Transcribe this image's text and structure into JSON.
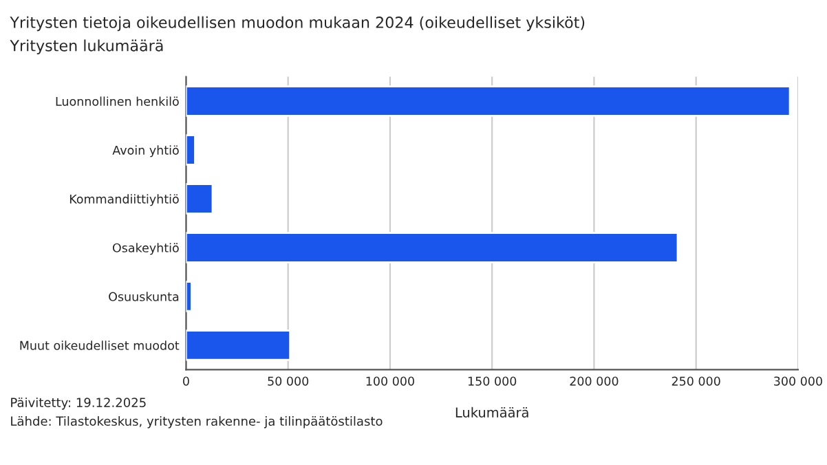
{
  "chart_data": {
    "type": "bar",
    "orientation": "horizontal",
    "title": "Yritysten tietoja oikeudellisen muodon mukaan 2024 (oikeudelliset yksiköt)",
    "subtitle": "Yritysten lukumäärä",
    "categories": [
      "Luonnollinen henkilö",
      "Avoin yhtiö",
      "Kommandiittiyhtiö",
      "Osakeyhtiö",
      "Osuuskunta",
      "Muut oikeudelliset muodot"
    ],
    "values": [
      296000,
      4400,
      13000,
      241000,
      2700,
      51000
    ],
    "color": "#1a56eb",
    "xlabel": "Lukumäärä",
    "xlim": [
      0,
      300000
    ],
    "xticks": [
      0,
      {
        "value": 50000,
        "label": "50 000"
      },
      {
        "value": 100000,
        "label": "100 000"
      },
      {
        "value": 150000,
        "label": "150 000"
      },
      {
        "value": 200000,
        "label": "200 000"
      },
      {
        "value": 250000,
        "label": "250 000"
      },
      {
        "value": 300000,
        "label": "300 000"
      }
    ],
    "grid": "x",
    "legend": false,
    "annotations": [
      "Päivitetty: 19.12.2025",
      "Lähde: Tilastokeskus, yritysten rakenne- ja tilinpäätöstilasto"
    ]
  }
}
